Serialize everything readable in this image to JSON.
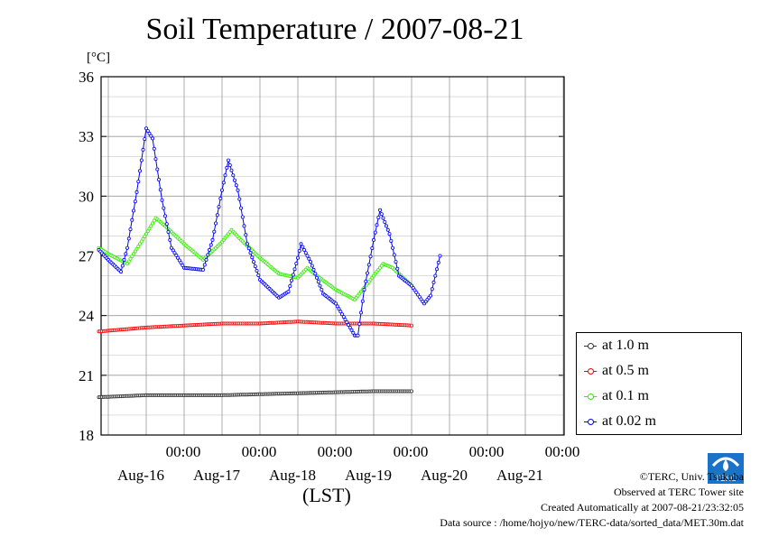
{
  "chart_data": {
    "type": "line",
    "title": "Soil Temperature / 2007-08-21",
    "unit_label": "[°C]",
    "xlabel": "(LST)",
    "ylim": [
      18,
      36
    ],
    "yticks": [
      18,
      21,
      24,
      27,
      30,
      33,
      36
    ],
    "xlim_days": [
      0,
      6
    ],
    "x_ticks": [
      {
        "time": "00:00",
        "date": "Aug-16"
      },
      {
        "time": "00:00",
        "date": "Aug-17"
      },
      {
        "time": "00:00",
        "date": "Aug-18"
      },
      {
        "time": "00:00",
        "date": "Aug-19"
      },
      {
        "time": "00:00",
        "date": "Aug-20"
      },
      {
        "time": "00:00",
        "date": "Aug-21"
      }
    ],
    "grid": true,
    "legend_position": "right",
    "series": [
      {
        "name": "at 1.0 m",
        "color": "#333333",
        "x": [
          "Aug-15 21:00",
          "Aug-16 12:00",
          "Aug-17 12:00",
          "Aug-18 12:00",
          "Aug-19 12:00",
          "Aug-20 00:00"
        ],
        "values": [
          19.9,
          20.0,
          20.0,
          20.1,
          20.2,
          20.2
        ]
      },
      {
        "name": "at 0.5 m",
        "color": "#ff0000",
        "x": [
          "Aug-15 21:00",
          "Aug-16 12:00",
          "Aug-17 00:00",
          "Aug-17 12:00",
          "Aug-18 00:00",
          "Aug-18 12:00",
          "Aug-19 00:00",
          "Aug-19 12:00",
          "Aug-20 00:00"
        ],
        "values": [
          23.2,
          23.4,
          23.5,
          23.6,
          23.6,
          23.7,
          23.6,
          23.6,
          23.5
        ]
      },
      {
        "name": "at 0.1 m",
        "color": "#33ee00",
        "x": [
          "Aug-15 21:00",
          "Aug-16 00:00",
          "Aug-16 06:00",
          "Aug-16 12:00",
          "Aug-16 15:00",
          "Aug-16 18:00",
          "Aug-17 00:00",
          "Aug-17 06:00",
          "Aug-17 12:00",
          "Aug-17 15:00",
          "Aug-17 18:00",
          "Aug-18 00:00",
          "Aug-18 06:00",
          "Aug-18 12:00",
          "Aug-18 15:00",
          "Aug-18 18:00",
          "Aug-19 00:00",
          "Aug-19 06:00",
          "Aug-19 12:00",
          "Aug-19 15:00",
          "Aug-19 18:00",
          "Aug-20 00:00"
        ],
        "values": [
          27.4,
          27.1,
          26.6,
          28.1,
          28.9,
          28.5,
          27.6,
          26.8,
          27.7,
          28.3,
          27.8,
          26.9,
          26.1,
          25.9,
          26.4,
          26.0,
          25.3,
          24.8,
          26.0,
          26.6,
          26.4,
          25.5
        ]
      },
      {
        "name": "at 0.02 m",
        "color": "#0000ff",
        "x": [
          "Aug-15 21:00",
          "Aug-16 00:00",
          "Aug-16 04:00",
          "Aug-16 06:00",
          "Aug-16 09:00",
          "Aug-16 12:00",
          "Aug-16 14:00",
          "Aug-16 17:00",
          "Aug-16 20:00",
          "Aug-17 00:00",
          "Aug-17 06:00",
          "Aug-17 09:00",
          "Aug-17 12:00",
          "Aug-17 14:00",
          "Aug-17 17:00",
          "Aug-17 20:00",
          "Aug-18 00:00",
          "Aug-18 06:00",
          "Aug-18 09:00",
          "Aug-18 12:00",
          "Aug-18 13:00",
          "Aug-18 16:00",
          "Aug-18 20:00",
          "Aug-19 00:00",
          "Aug-19 06:00",
          "Aug-19 07:00",
          "Aug-19 09:00",
          "Aug-19 12:00",
          "Aug-19 14:00",
          "Aug-19 17:00",
          "Aug-19 20:00",
          "Aug-20 00:00",
          "Aug-20 04:00",
          "Aug-20 06:00",
          "Aug-20 09:00"
        ],
        "values": [
          27.3,
          26.8,
          26.2,
          27.4,
          30.2,
          33.4,
          32.9,
          29.8,
          27.4,
          26.4,
          26.3,
          27.8,
          30.3,
          31.8,
          30.3,
          27.6,
          25.8,
          24.9,
          25.2,
          26.9,
          27.6,
          26.7,
          25.1,
          24.6,
          23.0,
          23.0,
          25.3,
          27.8,
          29.3,
          28.1,
          26.0,
          25.5,
          24.6,
          25.0,
          27.0
        ]
      }
    ]
  },
  "legend_items": [
    "at 1.0 m",
    "at 0.5 m",
    "at 0.1 m",
    "at 0.02 m"
  ],
  "credits": {
    "copyright": "©TERC, Univ. Tsukuba",
    "observed": "Observed at TERC Tower site",
    "created": "Created Automatically at 2007-08-21/23:32:05",
    "source": "Data source : /home/hojyo/new/TERC-data/sorted_data/MET.30m.dat"
  },
  "logo_text": "TERC"
}
